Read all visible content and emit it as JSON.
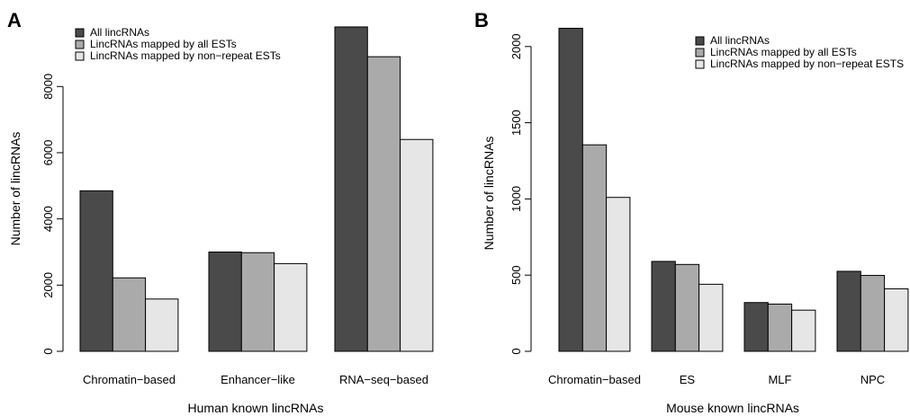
{
  "colors": {
    "all": "#4a4a4a",
    "all_ests": "#aaaaaa",
    "nonrepeat": "#e6e6e6"
  },
  "chart_data": [
    {
      "type": "bar",
      "panel": "A",
      "xlabel": "Human known lincRNAs",
      "ylabel": "Number of lincRNAs",
      "ylim": [
        0,
        10000
      ],
      "yticks": [
        0,
        2000,
        4000,
        6000,
        8000
      ],
      "categories": [
        "Chromatin−based",
        "Enhancer−like",
        "RNA−seq−based"
      ],
      "series": [
        {
          "name": "All lincRNAs",
          "values": [
            4850,
            3000,
            9800
          ]
        },
        {
          "name": "LincRNAs mapped by all ESTs",
          "values": [
            2220,
            2980,
            8900
          ]
        },
        {
          "name": "LincRNAs mapped by non−repeat ESTs",
          "values": [
            1580,
            2650,
            6400
          ]
        }
      ],
      "legend": "top-left"
    },
    {
      "type": "bar",
      "panel": "B",
      "xlabel": "Mouse known lincRNAs",
      "ylabel": "Number of lincRNAs",
      "ylim": [
        0,
        2200
      ],
      "yticks": [
        0,
        500,
        1000,
        1500,
        2000
      ],
      "categories": [
        "Chromatin−based",
        "ES",
        "MLF",
        "NPC"
      ],
      "series": [
        {
          "name": "All lincRNAs",
          "values": [
            2120,
            590,
            320,
            525
          ]
        },
        {
          "name": "LincRNAs mapped by all ESTs",
          "values": [
            1355,
            570,
            310,
            498
          ]
        },
        {
          "name": "LincRNAs mapped by non−repeat ESTS",
          "values": [
            1010,
            440,
            270,
            410
          ]
        }
      ],
      "legend": "top-right"
    }
  ]
}
